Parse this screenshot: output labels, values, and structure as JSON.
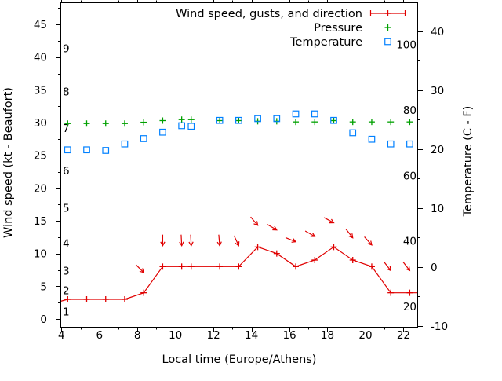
{
  "figure": {
    "background_color": "#ffffff",
    "legend": {
      "wind_label": "Wind speed, gusts, and direction",
      "pressure_label": "Pressure",
      "temperature_label": "Temperature"
    }
  },
  "colors": {
    "wind": "#e00000",
    "pressure": "#00a000",
    "temperature": "#0080ff",
    "axis": "#000000"
  },
  "chart_data": {
    "type": "line",
    "title": "",
    "xlabel": "Local time (Europe/Athens)",
    "ylabel_left": "Wind speed (kt - Beaufort)",
    "ylabel_right": "Temperature (C - F)",
    "x_range_hours": [
      3.947,
      22.767
    ],
    "x_ticks_major": [
      4,
      6,
      8,
      10,
      12,
      14,
      16,
      18,
      20,
      22
    ],
    "x_ticks_minor": [
      5,
      7,
      9,
      11,
      13,
      15,
      17,
      19,
      21
    ],
    "y_left_range_kt": [
      -1.32,
      48.36
    ],
    "y_left_ticks": [
      0,
      5,
      10,
      15,
      20,
      25,
      30,
      35,
      40,
      45
    ],
    "y_left_minor_ticks": [
      2.5,
      7.5,
      12.5,
      17.5,
      22.5,
      27.5,
      32.5,
      37.5,
      42.5,
      47.5
    ],
    "y_right_range_c": [
      -10.27,
      44.93
    ],
    "y_right_ticks": [
      -10,
      0,
      10,
      20,
      30,
      40
    ],
    "y_right_minor_ticks": [
      -5,
      5,
      15,
      25,
      35
    ],
    "beaufort_band_labels": [
      {
        "label": "1",
        "kt": 1.1
      },
      {
        "label": "2",
        "kt": 4.3
      },
      {
        "label": "3",
        "kt": 7.3
      },
      {
        "label": "4",
        "kt": 11.5
      },
      {
        "label": "5",
        "kt": 16.9
      },
      {
        "label": "6",
        "kt": 22.6
      },
      {
        "label": "7",
        "kt": 29.1
      },
      {
        "label": "8",
        "kt": 34.7
      },
      {
        "label": "9",
        "kt": 41.3
      }
    ],
    "fahrenheit_labels": [
      20,
      40,
      60,
      80,
      100
    ],
    "times_hours": [
      4.33,
      5.33,
      6.33,
      7.33,
      8.33,
      9.33,
      10.33,
      10.83,
      12.33,
      13.33,
      14.33,
      15.33,
      16.33,
      17.33,
      18.33,
      19.33,
      20.33,
      21.33,
      22.33
    ],
    "series": [
      {
        "name": "Wind speed, gusts, and direction",
        "kind": "wind",
        "axis": "left-kt",
        "speeds_kt": [
          3,
          3,
          3,
          3,
          4,
          8,
          8,
          8,
          8,
          8,
          11,
          10,
          8,
          9,
          11,
          9,
          8,
          4,
          4
        ],
        "edge_start": {
          "t": 3.947,
          "kt": 2.7
        },
        "edge_end": {
          "t": 22.767,
          "kt": 4
        },
        "gust_arrows": [
          {
            "t": 8.33,
            "gust_kt": 7.1,
            "wind_from_deg": 315
          },
          {
            "t": 9.33,
            "gust_kt": 11.2,
            "wind_from_deg": 0
          },
          {
            "t": 10.33,
            "gust_kt": 11.2,
            "wind_from_deg": 357
          },
          {
            "t": 10.83,
            "gust_kt": 11.2,
            "wind_from_deg": 357
          },
          {
            "t": 12.33,
            "gust_kt": 11.2,
            "wind_from_deg": 355
          },
          {
            "t": 13.33,
            "gust_kt": 11.2,
            "wind_from_deg": 335
          },
          {
            "t": 14.33,
            "gust_kt": 14.3,
            "wind_from_deg": 320
          },
          {
            "t": 15.33,
            "gust_kt": 13.6,
            "wind_from_deg": 300
          },
          {
            "t": 16.33,
            "gust_kt": 11.8,
            "wind_from_deg": 292
          },
          {
            "t": 17.33,
            "gust_kt": 12.6,
            "wind_from_deg": 300
          },
          {
            "t": 18.33,
            "gust_kt": 14.7,
            "wind_from_deg": 298
          },
          {
            "t": 19.33,
            "gust_kt": 12.4,
            "wind_from_deg": 322
          },
          {
            "t": 20.33,
            "gust_kt": 11.3,
            "wind_from_deg": 318
          },
          {
            "t": 21.33,
            "gust_kt": 7.4,
            "wind_from_deg": 322
          },
          {
            "t": 22.33,
            "gust_kt": 7.4,
            "wind_from_deg": 322
          }
        ]
      },
      {
        "name": "Pressure",
        "kind": "pressure",
        "axis": "hidden (plotted near 30 on left scale)",
        "level_kt": [
          29.85,
          29.85,
          29.85,
          29.85,
          30.05,
          30.3,
          30.45,
          30.45,
          30.3,
          30.3,
          30.2,
          30.2,
          30.1,
          30.1,
          30.3,
          30.1,
          30.1,
          30.1,
          30.1
        ]
      },
      {
        "name": "Temperature",
        "kind": "temperature",
        "axis": "right-celsius",
        "values_c": [
          19.9,
          19.9,
          19.8,
          20.9,
          21.8,
          22.9,
          24.0,
          23.9,
          24.9,
          24.9,
          25.2,
          25.2,
          26.0,
          26.0,
          24.9,
          22.8,
          21.7,
          20.9,
          20.9
        ]
      }
    ]
  }
}
